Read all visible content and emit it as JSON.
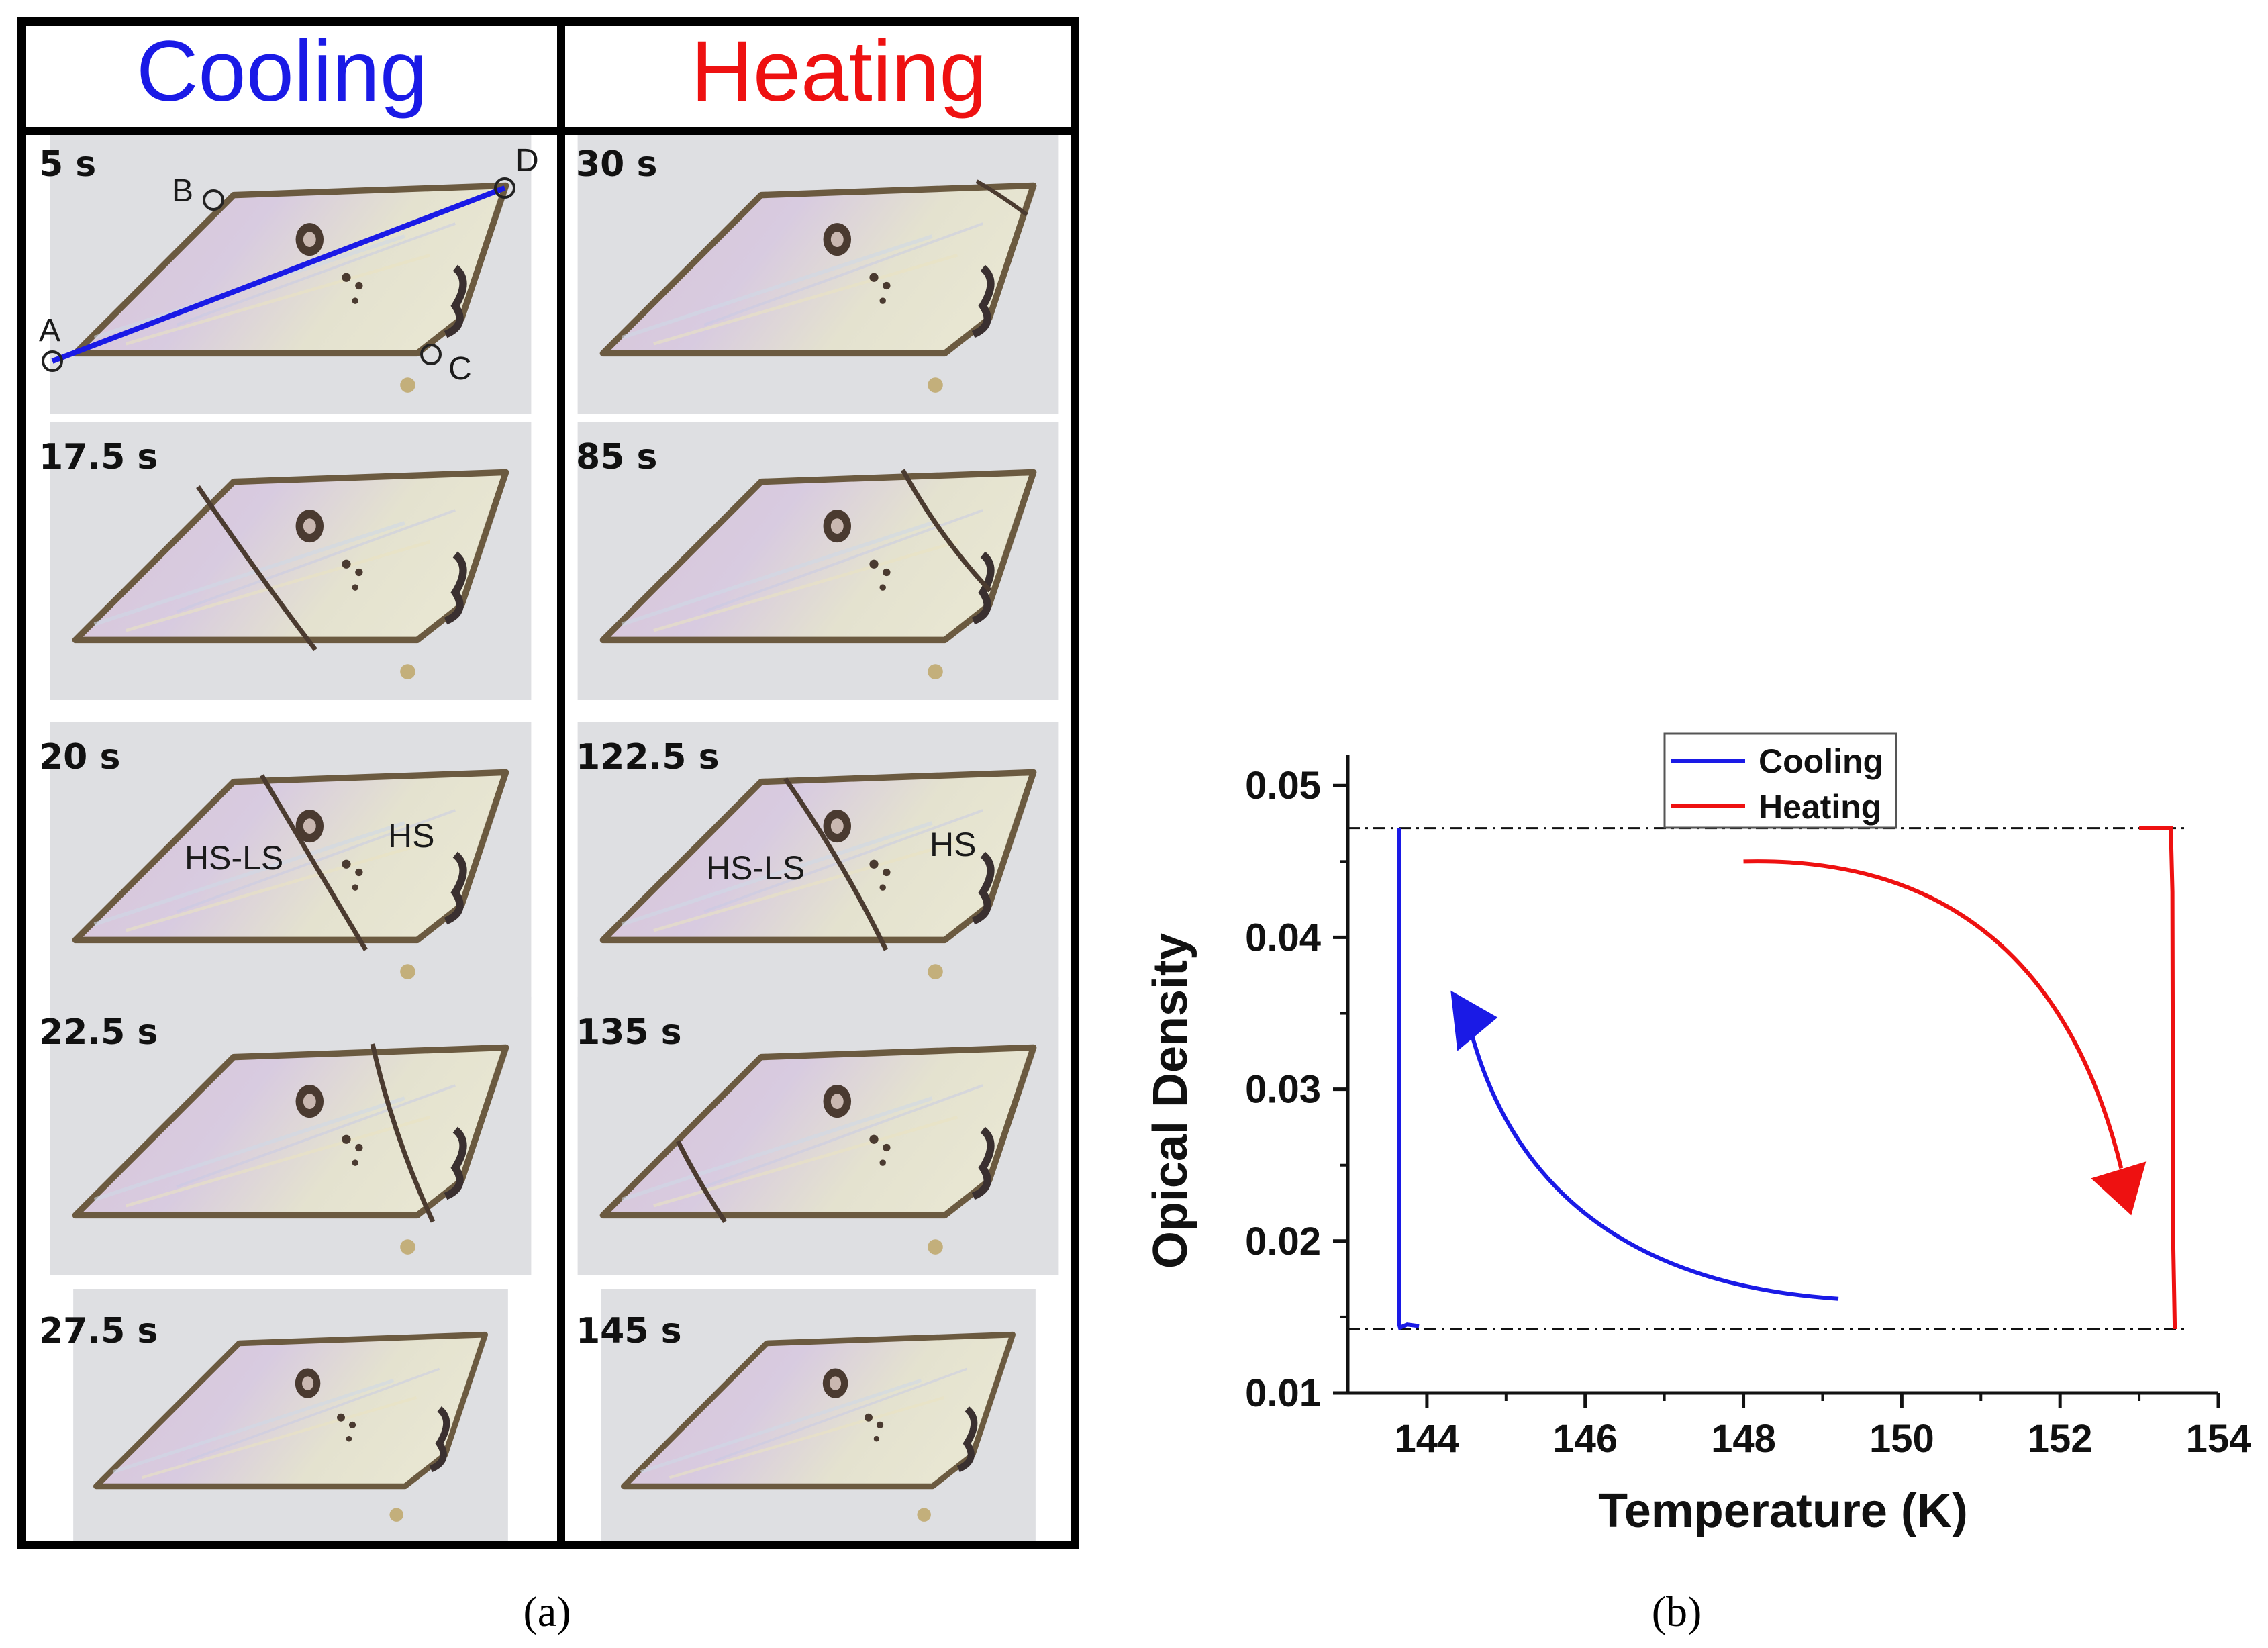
{
  "panel_a": {
    "headers": {
      "cooling": "Cooling",
      "heating": "Heating"
    },
    "cooling_frames": [
      {
        "time": "5 s"
      },
      {
        "time": "17.5 s"
      },
      {
        "time": "20 s"
      },
      {
        "time": "22.5 s"
      },
      {
        "time": "27.5 s"
      }
    ],
    "heating_frames": [
      {
        "time": "30 s"
      },
      {
        "time": "85 s"
      },
      {
        "time": "122.5 s"
      },
      {
        "time": "135 s"
      },
      {
        "time": "145 s"
      }
    ],
    "points": {
      "a": "A",
      "b": "B",
      "c": "C",
      "d": "D"
    },
    "phases": {
      "mixed": "HS-LS",
      "high_spin": "HS"
    },
    "colors": {
      "cooling": "#1a1ae6",
      "heating": "#ee1111"
    }
  },
  "captions": {
    "a": "(a)",
    "b": "(b)"
  },
  "chart_data": {
    "type": "line",
    "title": "",
    "xlabel": "Temperature (K)",
    "ylabel": "Opical Density",
    "xlim": [
      143,
      154
    ],
    "ylim": [
      0.01,
      0.052
    ],
    "xticks": [
      "144",
      "146",
      "148",
      "150",
      "152",
      "154"
    ],
    "yticks": [
      "0.01",
      "0.02",
      "0.03",
      "0.04",
      "0.05"
    ],
    "legend_position": "top-center",
    "series": [
      {
        "name": "Cooling",
        "color": "#1a1ae6",
        "x": [
          143.65,
          143.65,
          143.66,
          143.75,
          143.9
        ],
        "y": [
          0.0472,
          0.0145,
          0.0143,
          0.0145,
          0.0144
        ]
      },
      {
        "name": "Heating",
        "color": "#ee1111",
        "x": [
          153.0,
          153.4,
          153.42,
          153.43,
          153.45
        ],
        "y": [
          0.0472,
          0.0472,
          0.043,
          0.02,
          0.0142
        ]
      }
    ],
    "reference_lines_y": [
      0.0472,
      0.0142
    ],
    "arrows": [
      {
        "series": "Cooling",
        "direction": "from (149.2, 0.0162) to (144.3, 0.0365)"
      },
      {
        "series": "Heating",
        "direction": "from (148.0, 0.0450) to (152.9, 0.0217)"
      }
    ]
  }
}
